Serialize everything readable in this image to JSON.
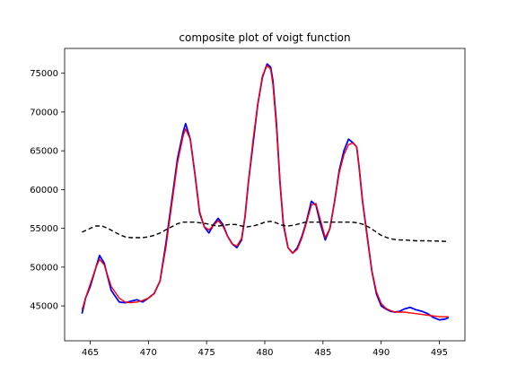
{
  "chart_data": {
    "type": "line",
    "title": "composite plot of voigt function",
    "xlabel": "",
    "ylabel": "",
    "xlim": [
      462.8,
      497.2
    ],
    "ylim": [
      40500,
      78200
    ],
    "x_ticks": [
      465,
      470,
      475,
      480,
      485,
      490,
      495
    ],
    "y_ticks": [
      45000,
      50000,
      55000,
      60000,
      65000,
      70000,
      75000
    ],
    "x_tick_labels": [
      "465",
      "470",
      "475",
      "480",
      "485",
      "490",
      "495"
    ],
    "y_tick_labels": [
      "45000",
      "50000",
      "55000",
      "60000",
      "65000",
      "70000",
      "75000"
    ],
    "grid": false,
    "legend": "none",
    "series": [
      {
        "style": "solid",
        "color": "#0000ff",
        "x": [
          464.3,
          464.6,
          465.0,
          465.5,
          465.8,
          466.2,
          466.8,
          467.5,
          468.0,
          468.5,
          469.0,
          469.5,
          470.0,
          470.5,
          471.0,
          471.5,
          472.0,
          472.5,
          473.0,
          473.2,
          473.6,
          474.0,
          474.4,
          474.8,
          475.2,
          475.6,
          476.0,
          476.4,
          476.8,
          477.2,
          477.6,
          478.0,
          478.3,
          478.6,
          479.0,
          479.4,
          479.8,
          480.2,
          480.5,
          480.7,
          481.0,
          481.3,
          481.6,
          482.0,
          482.4,
          482.8,
          483.2,
          483.6,
          484.0,
          484.4,
          484.8,
          485.2,
          485.6,
          486.0,
          486.4,
          486.8,
          487.2,
          487.6,
          487.9,
          488.1,
          488.4,
          488.8,
          489.2,
          489.6,
          490.0,
          490.4,
          490.8,
          491.2,
          491.6,
          492.0,
          492.5,
          493.0,
          493.5,
          494.0,
          494.5,
          495.0,
          495.5,
          495.8
        ],
        "y": [
          44000,
          46000,
          47500,
          50000,
          51500,
          50500,
          47000,
          45500,
          45400,
          45600,
          45800,
          45500,
          46000,
          46600,
          48200,
          53000,
          58500,
          64000,
          67500,
          68500,
          66500,
          62000,
          57000,
          55200,
          54400,
          55500,
          56300,
          55500,
          54000,
          53000,
          52500,
          53500,
          56500,
          61000,
          66000,
          71000,
          74500,
          76200,
          75800,
          74000,
          68500,
          61000,
          55500,
          52500,
          51800,
          52500,
          54000,
          56000,
          58500,
          58000,
          55500,
          53500,
          55000,
          58500,
          62500,
          65000,
          66500,
          66000,
          65500,
          63000,
          58500,
          54000,
          49500,
          46500,
          45000,
          44600,
          44300,
          44200,
          44300,
          44600,
          44800,
          44500,
          44300,
          44000,
          43500,
          43200,
          43300,
          43500
        ]
      },
      {
        "style": "solid",
        "color": "#ff0000",
        "x": [
          464.3,
          464.6,
          465.0,
          465.5,
          465.8,
          466.2,
          466.8,
          467.5,
          468.0,
          468.5,
          469.0,
          469.5,
          470.0,
          470.5,
          471.0,
          471.5,
          472.0,
          472.5,
          473.0,
          473.2,
          473.6,
          474.0,
          474.4,
          474.8,
          475.2,
          475.6,
          476.0,
          476.4,
          476.8,
          477.2,
          477.6,
          478.0,
          478.3,
          478.6,
          479.0,
          479.4,
          479.8,
          480.2,
          480.5,
          480.7,
          481.0,
          481.3,
          481.6,
          482.0,
          482.4,
          482.8,
          483.2,
          483.6,
          484.0,
          484.4,
          484.8,
          485.2,
          485.6,
          486.0,
          486.4,
          486.8,
          487.2,
          487.6,
          487.9,
          488.1,
          488.4,
          488.8,
          489.2,
          489.6,
          490.0,
          490.4,
          490.8,
          491.2,
          491.6,
          492.0,
          492.5,
          493.0,
          493.5,
          494.0,
          494.5,
          495.0,
          495.5,
          495.8
        ],
        "y": [
          44500,
          46000,
          47800,
          50000,
          51000,
          50300,
          47500,
          46000,
          45500,
          45400,
          45500,
          45700,
          46000,
          46600,
          48200,
          52500,
          58000,
          63500,
          67000,
          67800,
          66500,
          62000,
          57200,
          55200,
          54800,
          55400,
          56000,
          55300,
          54000,
          53000,
          52700,
          53700,
          56500,
          61000,
          66500,
          71000,
          74700,
          76000,
          75500,
          73500,
          68000,
          61000,
          55800,
          52500,
          51800,
          52300,
          53800,
          55800,
          58000,
          58200,
          56000,
          53800,
          55000,
          58500,
          62200,
          64500,
          65800,
          66000,
          65500,
          63000,
          58500,
          53800,
          49500,
          46800,
          45300,
          44700,
          44400,
          44200,
          44200,
          44200,
          44100,
          44000,
          43900,
          43800,
          43700,
          43600,
          43600,
          43600
        ]
      },
      {
        "style": "dashed",
        "color": "#000000",
        "x": [
          464.3,
          465.0,
          465.5,
          466.0,
          466.5,
          467.0,
          467.5,
          468.0,
          468.5,
          469.0,
          469.5,
          470.0,
          470.5,
          471.0,
          471.5,
          472.0,
          472.5,
          473.0,
          473.5,
          474.0,
          474.5,
          475.0,
          475.5,
          476.0,
          476.5,
          477.0,
          477.5,
          478.0,
          478.5,
          479.0,
          479.5,
          480.0,
          480.5,
          481.0,
          481.5,
          482.0,
          482.5,
          483.0,
          483.5,
          484.0,
          484.5,
          485.0,
          485.5,
          486.0,
          486.5,
          487.0,
          487.5,
          488.0,
          488.5,
          489.0,
          489.5,
          490.0,
          490.5,
          491.0,
          491.5,
          492.0,
          493.0,
          494.0,
          495.0,
          495.8
        ],
        "y": [
          54500,
          55000,
          55300,
          55300,
          55000,
          54600,
          54200,
          53900,
          53800,
          53800,
          53800,
          53900,
          54100,
          54400,
          54800,
          55200,
          55600,
          55800,
          55800,
          55800,
          55700,
          55600,
          55400,
          55300,
          55400,
          55500,
          55500,
          55300,
          55200,
          55300,
          55500,
          55800,
          55900,
          55700,
          55400,
          55300,
          55400,
          55600,
          55800,
          55800,
          55800,
          55800,
          55800,
          55800,
          55800,
          55800,
          55800,
          55700,
          55500,
          55100,
          54600,
          54100,
          53800,
          53600,
          53500,
          53500,
          53400,
          53400,
          53350,
          53300
        ]
      }
    ]
  }
}
